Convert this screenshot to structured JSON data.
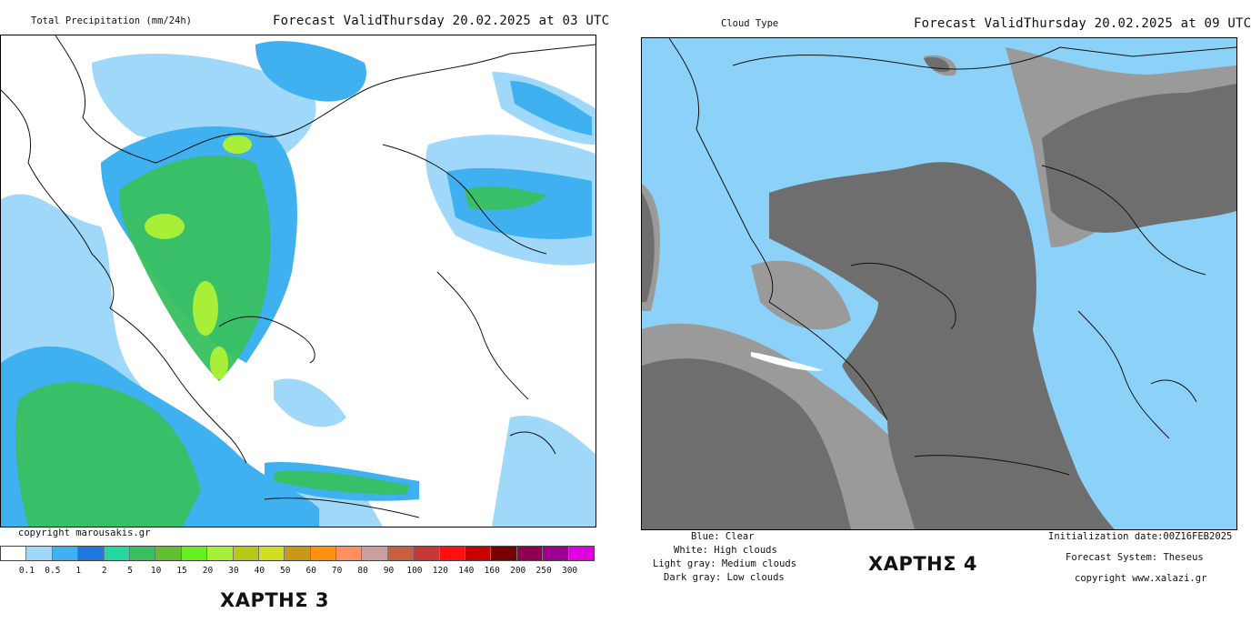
{
  "left_panel": {
    "product_title": "Total Precipitation (mm/24h)",
    "forecast_valid_label": "Forecast Valid:",
    "forecast_valid_value": "Thursday 20.02.2025 at 03 UTC",
    "copyright": "copyright marousakis.gr",
    "caption": "ΧΑΡΤΗΣ 3",
    "legend": {
      "colors": [
        "#ffffff",
        "#9fd8f8",
        "#3fb0f0",
        "#1f78e0",
        "#22d8a0",
        "#38c060",
        "#60c030",
        "#66f020",
        "#a8f038",
        "#b8c818",
        "#d0e020",
        "#c89818",
        "#ff9010",
        "#ff9060",
        "#c8a0a0",
        "#c86040",
        "#c83838",
        "#ff1010",
        "#c80000",
        "#780000",
        "#900050",
        "#a00090",
        "#e000e0"
      ],
      "ticks": [
        "0.1",
        "0.5",
        "1",
        "2",
        "5",
        "10",
        "15",
        "20",
        "30",
        "40",
        "50",
        "60",
        "70",
        "80",
        "90",
        "100",
        "120",
        "140",
        "160",
        "200",
        "250",
        "300"
      ]
    }
  },
  "right_panel": {
    "product_title": "Cloud Type",
    "forecast_valid_label": "Forecast Valid:",
    "forecast_valid_value": "Thursday 20.02.2025 at 09 UTC",
    "legend_lines": [
      "Blue: Clear",
      "White: High clouds",
      "Light gray: Medium clouds",
      "Dark gray: Low clouds"
    ],
    "caption": "ΧΑΡΤΗΣ 4",
    "initialization": "Initialization date:00Z16FEB2025",
    "forecast_system": "Forecast System: Theseus",
    "copyright": "copyright www.xalazi.gr",
    "colors": {
      "clear": "#8cd2f8",
      "high": "#ffffff",
      "medium": "#9a9a9a",
      "low": "#6e6e6e"
    }
  }
}
